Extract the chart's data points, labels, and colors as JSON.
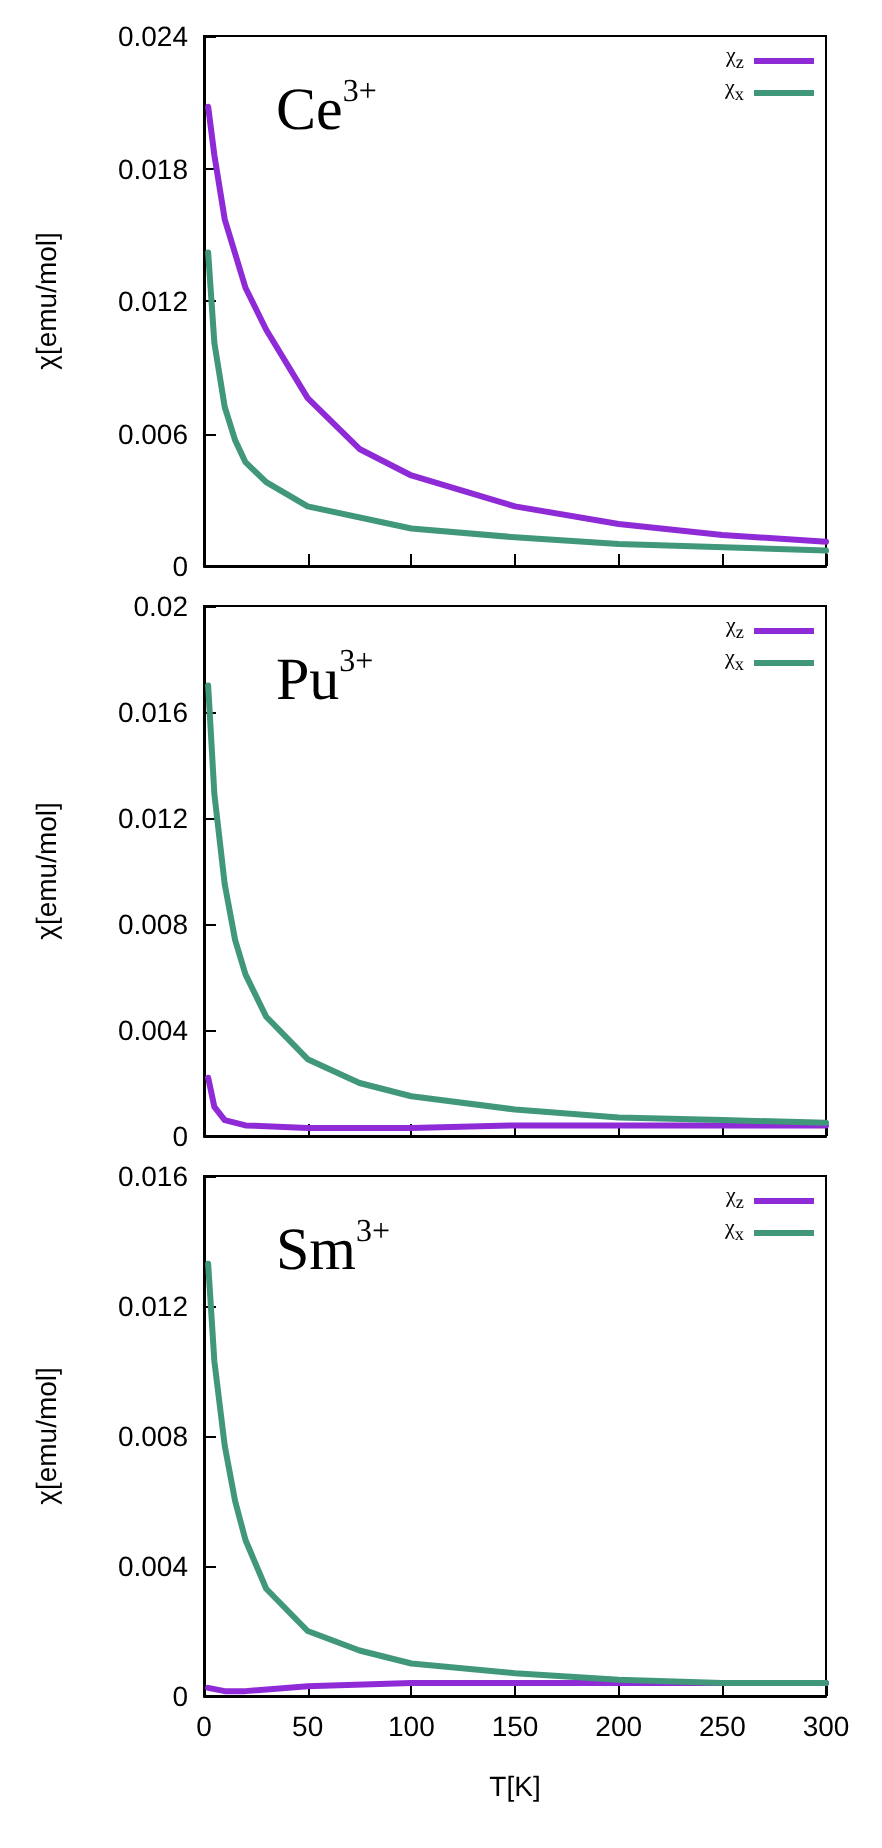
{
  "chart_data": [
    {
      "type": "line",
      "ylabel": "χ[emu/mol]",
      "annotations": [
        "Ce$^{3+}$"
      ],
      "xlim": [
        0,
        300
      ],
      "xticks": [
        0,
        50,
        100,
        150,
        200,
        250,
        300
      ],
      "ylim": [
        0,
        0.024
      ],
      "yticks": [
        0,
        0.006,
        0.012,
        0.018,
        0.024
      ],
      "tick_labels": "y",
      "legend": "top right",
      "grid": false,
      "line_style": "solid",
      "marker": "none",
      "series": [
        {
          "name": "χ$_{z}$",
          "color": "#8e2bd6",
          "x": [
            2,
            5,
            10,
            20,
            30,
            50,
            75,
            100,
            150,
            200,
            250,
            300
          ],
          "values": [
            0.0208,
            0.0186,
            0.0157,
            0.0126,
            0.0107,
            0.0076,
            0.0053,
            0.0041,
            0.0027,
            0.0019,
            0.0014,
            0.0011
          ]
        },
        {
          "name": "χ$_{x}$",
          "color": "#41977a",
          "x": [
            2,
            5,
            10,
            15,
            20,
            30,
            50,
            100,
            150,
            200,
            300
          ],
          "values": [
            0.0142,
            0.0101,
            0.0072,
            0.0057,
            0.0047,
            0.0038,
            0.0027,
            0.0017,
            0.0013,
            0.001,
            0.0007
          ]
        }
      ]
    },
    {
      "type": "line",
      "ylabel": "χ[emu/mol]",
      "annotations": [
        "Pu$^{3+}$"
      ],
      "xlim": [
        0,
        300
      ],
      "xticks": [
        0,
        50,
        100,
        150,
        200,
        250,
        300
      ],
      "ylim": [
        0,
        0.02
      ],
      "yticks": [
        0,
        0.004,
        0.008,
        0.012,
        0.016,
        0.02
      ],
      "tick_labels": "y",
      "legend": "top right",
      "grid": false,
      "line_style": "solid",
      "marker": "none",
      "series": [
        {
          "name": "χ$_{z}$",
          "color": "#8e2bd6",
          "x": [
            2,
            5,
            10,
            20,
            50,
            100,
            150,
            200,
            300
          ],
          "values": [
            0.0022,
            0.0011,
            0.0006,
            0.0004,
            0.0003,
            0.0003,
            0.0004,
            0.0004,
            0.0004
          ]
        },
        {
          "name": "χ$_{x}$",
          "color": "#41977a",
          "x": [
            2,
            5,
            10,
            15,
            20,
            30,
            50,
            75,
            100,
            150,
            200,
            250,
            300
          ],
          "values": [
            0.017,
            0.0129,
            0.0095,
            0.0074,
            0.0061,
            0.0045,
            0.0029,
            0.002,
            0.0015,
            0.001,
            0.0007,
            0.0006,
            0.0005
          ]
        }
      ]
    },
    {
      "type": "line",
      "xlabel": "T[K]",
      "ylabel": "χ[emu/mol]",
      "annotations": [
        "Sm$^{3+}$"
      ],
      "xlim": [
        0,
        300
      ],
      "xticks": [
        0,
        50,
        100,
        150,
        200,
        250,
        300
      ],
      "ylim": [
        0,
        0.016
      ],
      "yticks": [
        0,
        0.004,
        0.008,
        0.012,
        0.016
      ],
      "legend": "top right",
      "grid": false,
      "line_style": "solid",
      "marker": "none",
      "series": [
        {
          "name": "χ$_{z}$",
          "color": "#8e2bd6",
          "x": [
            2,
            10,
            20,
            50,
            100,
            150,
            200,
            300
          ],
          "values": [
            0.00025,
            0.00015,
            0.00015,
            0.0003,
            0.0004,
            0.0004,
            0.0004,
            0.0004
          ]
        },
        {
          "name": "χ$_{x}$",
          "color": "#41977a",
          "x": [
            2,
            5,
            10,
            15,
            20,
            30,
            50,
            75,
            100,
            150,
            200,
            250,
            300
          ],
          "values": [
            0.0133,
            0.0103,
            0.0077,
            0.006,
            0.0048,
            0.0033,
            0.002,
            0.0014,
            0.001,
            0.0007,
            0.0005,
            0.0004,
            0.0004
          ]
        }
      ]
    }
  ]
}
